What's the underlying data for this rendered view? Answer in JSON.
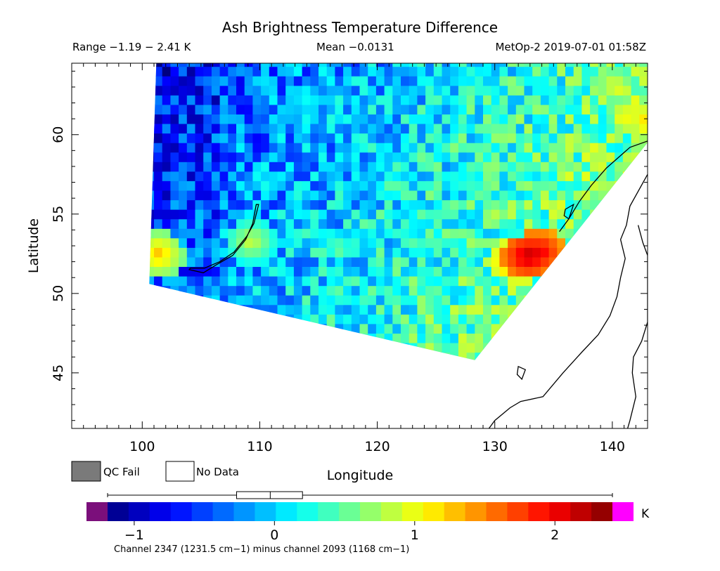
{
  "chart_data": {
    "type": "heatmap",
    "title": "Ash Brightness Temperature Difference",
    "header": {
      "range": "Range −1.19 − 2.41 K",
      "mean": "Mean −0.0131",
      "source": "MetOp-2 2019-07-01 01:58Z"
    },
    "xlabel": "Longitude",
    "ylabel": "Latitude",
    "xlim": [
      94,
      143
    ],
    "ylim": [
      41.5,
      64.5
    ],
    "x_ticks": [
      100,
      110,
      120,
      130,
      140
    ],
    "y_ticks": [
      45,
      50,
      55,
      60
    ],
    "legend": {
      "qc_fail": "QC Fail",
      "no_data": "No Data",
      "qc_fail_color": "#7a7a7a",
      "no_data_color": "#ffffff"
    },
    "colorbar": {
      "vmin": -1.19,
      "vmax": 2.41,
      "unit": "K",
      "ticks": [
        -1,
        0,
        1,
        2
      ],
      "tick_labels": [
        "−1",
        "0",
        "1",
        "2"
      ],
      "under_color": "#7b0f7b",
      "over_color": "#ff00ff",
      "colormap": "jet",
      "boxplot": {
        "min": -1.19,
        "q1": -0.27,
        "median": -0.03,
        "q3": 0.2,
        "max": 2.41
      }
    },
    "caption": "Channel 2347 (1231.5 cm−1) minus channel 2093 (1168 cm−1)",
    "swath": {
      "corners": [
        [
          101.2,
          64.5
        ],
        [
          143,
          64.5
        ],
        [
          143,
          59.5
        ],
        [
          128.3,
          45.8
        ],
        [
          100.6,
          50.6
        ]
      ]
    },
    "features": {
      "lake_baikal": [
        [
          109.9,
          55.6
        ],
        [
          109.5,
          54.4
        ],
        [
          108.9,
          53.6
        ],
        [
          107.8,
          52.6
        ],
        [
          106.6,
          52.0
        ],
        [
          105.3,
          51.6
        ],
        [
          104.1,
          51.6
        ],
        [
          104.0,
          51.5
        ],
        [
          105.2,
          51.3
        ],
        [
          106.3,
          51.8
        ],
        [
          107.7,
          52.4
        ],
        [
          108.8,
          53.4
        ],
        [
          109.4,
          54.4
        ],
        [
          109.7,
          55.6
        ]
      ],
      "coast_upper": [
        [
          143,
          59.6
        ],
        [
          141.5,
          59.2
        ],
        [
          139.5,
          57.9
        ],
        [
          138.2,
          56.8
        ],
        [
          137.2,
          55.8
        ],
        [
          136.3,
          54.7
        ],
        [
          135.5,
          53.9
        ]
      ],
      "coast_lower": [
        [
          143,
          57.5
        ],
        [
          141.5,
          55.5
        ],
        [
          141.2,
          54.3
        ],
        [
          140.7,
          53.4
        ],
        [
          141.1,
          52.2
        ],
        [
          140.7,
          51.0
        ],
        [
          140.4,
          49.8
        ],
        [
          139.8,
          48.6
        ],
        [
          138.8,
          47.4
        ],
        [
          137.4,
          46.3
        ],
        [
          135.8,
          45.0
        ],
        [
          134.1,
          43.5
        ],
        [
          132.2,
          43.2
        ],
        [
          131.3,
          42.8
        ],
        [
          130.0,
          42.0
        ],
        [
          129.5,
          41.5
        ]
      ],
      "sakhalin": [
        [
          142.2,
          54.3
        ],
        [
          142.6,
          53.2
        ],
        [
          143,
          52.4
        ],
        [
          143,
          48.2
        ],
        [
          142.5,
          47.0
        ],
        [
          141.8,
          46.0
        ],
        [
          141.7,
          45.0
        ],
        [
          142.0,
          43.5
        ],
        [
          141.5,
          42.0
        ],
        [
          141.3,
          41.5
        ]
      ],
      "islet": [
        [
          136.0,
          55.3
        ],
        [
          136.7,
          55.6
        ],
        [
          136.3,
          54.7
        ],
        [
          135.9,
          54.9
        ]
      ],
      "lake_khanka": [
        [
          132.0,
          45.4
        ],
        [
          132.6,
          45.2
        ],
        [
          132.3,
          44.6
        ],
        [
          131.9,
          44.9
        ]
      ]
    },
    "hotspots": [
      {
        "lon": 132.5,
        "lat": 52.1,
        "value": 2.2
      },
      {
        "lon": 133.4,
        "lat": 52.3,
        "value": 2.1
      },
      {
        "lon": 131.5,
        "lat": 51.8,
        "value": 1.6
      },
      {
        "lon": 141.5,
        "lat": 61.0,
        "value": 1.1
      },
      {
        "lon": 139.8,
        "lat": 62.8,
        "value": 1.0
      },
      {
        "lon": 142.8,
        "lat": 60.6,
        "value": 1.3
      },
      {
        "lon": 101.0,
        "lat": 52.2,
        "value": 1.3
      },
      {
        "lon": 108.9,
        "lat": 53.0,
        "value": 0.9
      }
    ]
  }
}
